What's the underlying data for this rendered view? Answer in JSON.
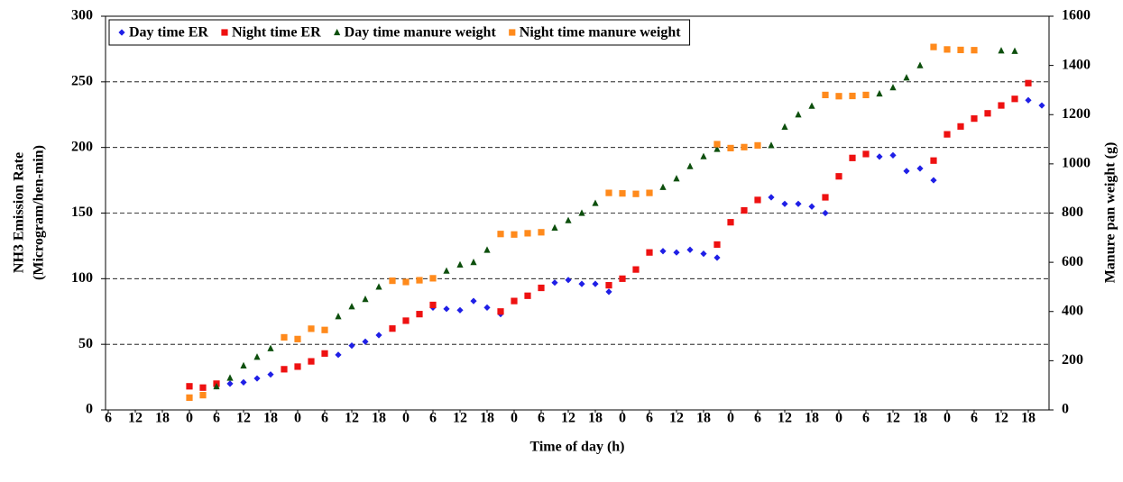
{
  "chart_data": {
    "type": "scatter",
    "x_label": "Time of day (h)",
    "y_label": [
      "NH3 Emission Rate",
      "(Microgram/hen-min)"
    ],
    "y2_label": "Manure pan weight (g)",
    "xlim": [
      -18.6,
      190.6
    ],
    "xticks": [
      {
        "value": -18,
        "label": "6"
      },
      {
        "value": -12,
        "label": "12"
      },
      {
        "value": -6,
        "label": "18"
      },
      0,
      6,
      12,
      18,
      {
        "value": 24,
        "label": "0"
      },
      {
        "value": 30,
        "label": "6"
      },
      {
        "value": 36,
        "label": "12"
      },
      {
        "value": 42,
        "label": "18"
      },
      {
        "value": 48,
        "label": "0"
      },
      {
        "value": 54,
        "label": "6"
      },
      {
        "value": 60,
        "label": "12"
      },
      {
        "value": 66,
        "label": "18"
      },
      {
        "value": 72,
        "label": "0"
      },
      {
        "value": 78,
        "label": "6"
      },
      {
        "value": 84,
        "label": "12"
      },
      {
        "value": 90,
        "label": "18"
      },
      {
        "value": 96,
        "label": "0"
      },
      {
        "value": 102,
        "label": "6"
      },
      {
        "value": 108,
        "label": "12"
      },
      {
        "value": 114,
        "label": "18"
      },
      {
        "value": 120,
        "label": "0"
      },
      {
        "value": 126,
        "label": "6"
      },
      {
        "value": 132,
        "label": "12"
      },
      {
        "value": 138,
        "label": "18"
      },
      {
        "value": 144,
        "label": "0"
      },
      {
        "value": 150,
        "label": "6"
      },
      {
        "value": 156,
        "label": "12"
      },
      {
        "value": 162,
        "label": "18"
      },
      {
        "value": 168,
        "label": "0"
      },
      {
        "value": 174,
        "label": "6"
      },
      {
        "value": 180,
        "label": "12"
      },
      {
        "value": 186,
        "label": "18"
      }
    ],
    "ylim": [
      0,
      300
    ],
    "yticks": [
      0,
      50,
      100,
      150,
      200,
      250,
      300
    ],
    "y2lim": [
      0,
      1600
    ],
    "y2ticks": [
      0,
      200,
      400,
      600,
      800,
      1000,
      1200,
      1400,
      1600
    ],
    "grid": true,
    "legend": "top-left",
    "series": [
      {
        "name": "Day time ER",
        "color": "#1f1fe6",
        "marker": "diamond",
        "x": [
          6,
          9,
          12,
          15,
          18,
          33,
          36,
          39,
          42,
          54,
          57,
          60,
          63,
          66,
          69,
          81,
          84,
          87,
          90,
          93,
          105,
          108,
          111,
          114,
          117,
          129,
          132,
          135,
          138,
          141,
          153,
          156,
          159,
          162,
          165,
          186,
          189
        ],
        "values": [
          18,
          20,
          21,
          24,
          27,
          42,
          49,
          52,
          57,
          78,
          77,
          76,
          83,
          78,
          73,
          97,
          99,
          96,
          96,
          90,
          121,
          120,
          122,
          119,
          116,
          162,
          157,
          157,
          155,
          150,
          193,
          194,
          182,
          184,
          175,
          236,
          232
        ]
      },
      {
        "name": "Night time ER",
        "color": "#ee1111",
        "marker": "square",
        "x": [
          0,
          3,
          6,
          21,
          24,
          27,
          30,
          45,
          48,
          51,
          54,
          69,
          72,
          75,
          78,
          93,
          96,
          99,
          102,
          117,
          120,
          123,
          126,
          141,
          144,
          147,
          150,
          165,
          168,
          171,
          174,
          177,
          180,
          183,
          186
        ],
        "values": [
          18,
          17,
          20,
          31,
          33,
          37,
          43,
          62,
          68,
          73,
          80,
          75,
          83,
          87,
          93,
          95,
          100,
          107,
          120,
          126,
          143,
          152,
          160,
          162,
          178,
          192,
          195,
          190,
          210,
          216,
          222,
          226,
          232,
          237,
          249
        ]
      },
      {
        "name": "Day time manure weight",
        "color": "#0d4f0d",
        "marker": "triangle",
        "axis": "y2",
        "x": [
          6,
          9,
          12,
          15,
          18,
          33,
          36,
          39,
          42,
          57,
          60,
          63,
          66,
          81,
          84,
          87,
          90,
          105,
          108,
          111,
          114,
          117,
          129,
          132,
          135,
          138,
          153,
          156,
          159,
          162,
          180,
          183
        ],
        "values": [
          95,
          130,
          180,
          215,
          250,
          380,
          420,
          450,
          500,
          565,
          590,
          600,
          650,
          740,
          770,
          800,
          840,
          905,
          940,
          990,
          1030,
          1060,
          1075,
          1150,
          1200,
          1235,
          1285,
          1310,
          1350,
          1400,
          1460,
          1458
        ]
      },
      {
        "name": "Night time manure weight",
        "color": "#ff8a1c",
        "marker": "square",
        "axis": "y2",
        "x": [
          0,
          3,
          21,
          24,
          27,
          30,
          45,
          48,
          51,
          54,
          69,
          72,
          75,
          78,
          93,
          96,
          99,
          102,
          117,
          120,
          123,
          126,
          141,
          144,
          147,
          150,
          165,
          168,
          171,
          174
        ],
        "values": [
          50,
          60,
          295,
          288,
          330,
          325,
          525,
          520,
          527,
          535,
          715,
          713,
          718,
          722,
          882,
          880,
          878,
          882,
          1080,
          1064,
          1068,
          1075,
          1280,
          1275,
          1276,
          1280,
          1475,
          1465,
          1463,
          1462
        ]
      }
    ]
  }
}
